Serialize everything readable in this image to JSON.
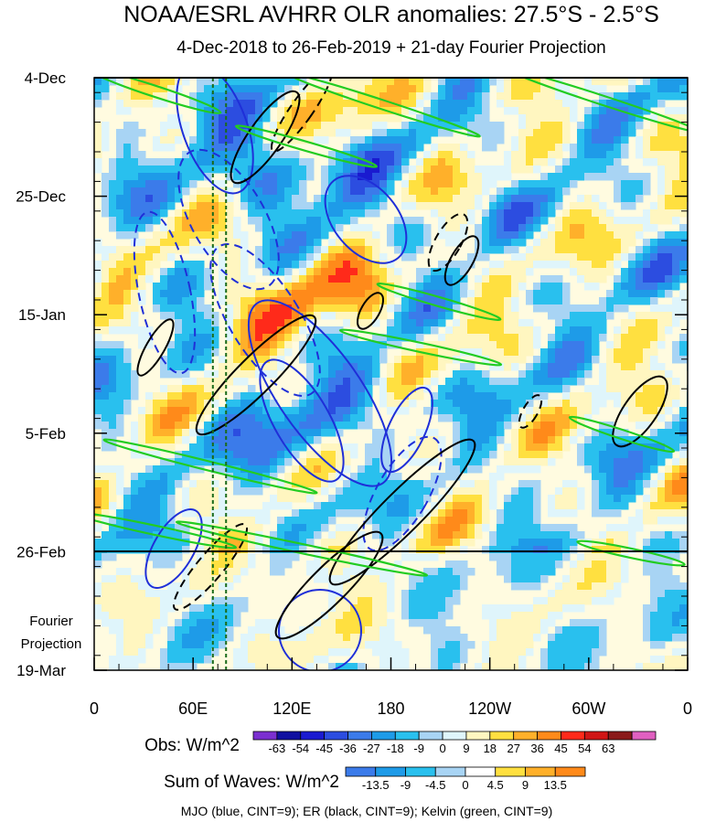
{
  "title": "NOAA/ESRL AVHRR OLR anomalies: 27.5°S - 2.5°S",
  "subtitle": "4-Dec-2018 to 26-Feb-2019 + 21-day Fourier Projection",
  "projection_label_line1": "Fourier",
  "projection_label_line2": "Projection",
  "footer": "MJO (blue, CINT=9); ER (black, CINT=9); Kelvin (green, CINT=9)",
  "colors": {
    "mjo": "#1f2fd8",
    "er": "#000000",
    "kelvin": "#22cc22",
    "reference_line": "#1a6b1a"
  },
  "chart_data": {
    "type": "heatmap",
    "subtype": "hovmoller",
    "x_axis": {
      "label": "",
      "ticks": [
        "0",
        "60E",
        "120E",
        "180",
        "120W",
        "60W",
        "0"
      ],
      "range_deg_east": [
        0,
        360
      ]
    },
    "y_axis": {
      "label": "",
      "ticks": [
        "4-Dec",
        "25-Dec",
        "15-Jan",
        "5-Feb",
        "26-Feb",
        "19-Mar"
      ],
      "range": [
        "2018-12-04",
        "2019-03-19"
      ],
      "direction": "downward"
    },
    "observation_end": "2019-02-26",
    "projection_end": "2019-03-19",
    "reference_longitudes_deg_east": [
      72,
      80
    ],
    "obs_colorbar": {
      "label": "Obs: W/m^2",
      "levels": [
        "-63",
        "-54",
        "-45",
        "-36",
        "-27",
        "-18",
        "-9",
        "0",
        "9",
        "18",
        "27",
        "36",
        "45",
        "54",
        "63"
      ],
      "colors": [
        "#7b2fd0",
        "#1010a0",
        "#1a1ad0",
        "#2c4de0",
        "#3b7bea",
        "#1e9be8",
        "#29c0ee",
        "#a8d4f4",
        "#dff5fb",
        "#fff6c0",
        "#ffe040",
        "#ffb02a",
        "#ff8a1a",
        "#ff2a1a",
        "#d01515",
        "#8a1a1a",
        "#e060c0"
      ]
    },
    "waves_colorbar": {
      "label": "Sum of Waves: W/m^2",
      "levels": [
        "-13.5",
        "-9",
        "-4.5",
        "0",
        "4.5",
        "9",
        "13.5"
      ],
      "colors": [
        "#3b7bea",
        "#1e9be8",
        "#29c0ee",
        "#a8d4f4",
        "#ffffff",
        "#ffe040",
        "#ffb02a",
        "#ff8a1a"
      ]
    },
    "contour_sets": [
      {
        "name": "MJO",
        "cint": 9,
        "color": "#1f2fd8"
      },
      {
        "name": "ER",
        "cint": 9,
        "color": "#000000"
      },
      {
        "name": "Kelvin",
        "cint": 9,
        "color": "#22cc22"
      }
    ]
  }
}
